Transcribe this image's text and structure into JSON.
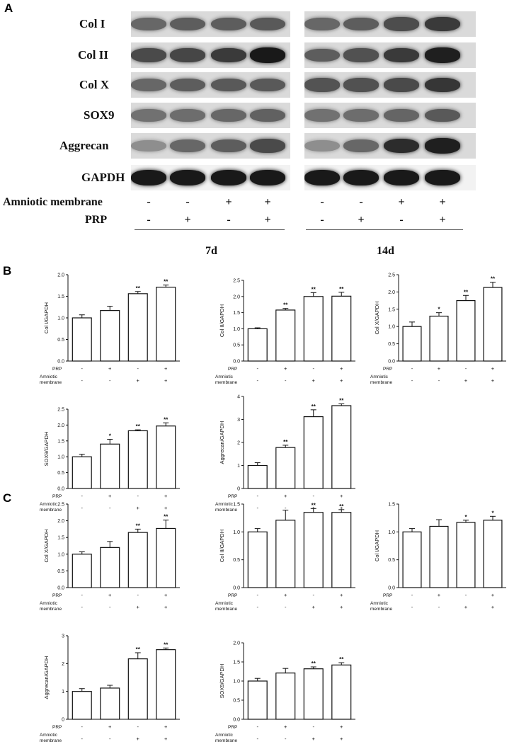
{
  "figure": {
    "panel_a": {
      "letter": "A",
      "rows": [
        {
          "name": "Col I",
          "intensity_7d": [
            0.55,
            0.6,
            0.6,
            0.62
          ],
          "intensity_14d": [
            0.55,
            0.6,
            0.68,
            0.78
          ]
        },
        {
          "name": "Col II",
          "intensity_7d": [
            0.7,
            0.72,
            0.78,
            0.95
          ],
          "intensity_14d": [
            0.6,
            0.66,
            0.78,
            0.92
          ]
        },
        {
          "name": "Col X",
          "intensity_7d": [
            0.55,
            0.6,
            0.62,
            0.62
          ],
          "intensity_14d": [
            0.65,
            0.66,
            0.7,
            0.8
          ]
        },
        {
          "name": "SOX9",
          "intensity_7d": [
            0.5,
            0.52,
            0.55,
            0.58
          ],
          "intensity_14d": [
            0.5,
            0.52,
            0.56,
            0.62
          ]
        },
        {
          "name": "Aggrecan",
          "intensity_7d": [
            0.35,
            0.55,
            0.6,
            0.7
          ],
          "intensity_14d": [
            0.35,
            0.55,
            0.85,
            0.92
          ]
        },
        {
          "name": "GAPDH",
          "intensity_7d": [
            0.95,
            0.95,
            0.95,
            0.95
          ],
          "intensity_14d": [
            0.95,
            0.95,
            0.95,
            0.95
          ]
        }
      ],
      "conditions": {
        "amniotic_label": "Amniotic membrane",
        "prp_label": "PRP",
        "amniotic_signs": [
          "-",
          "-",
          "+",
          "+"
        ],
        "prp_signs": [
          "-",
          "+",
          "-",
          "+"
        ]
      },
      "time_labels": [
        "7d",
        "14d"
      ]
    },
    "panel_b": {
      "letter": "B"
    },
    "panel_c": {
      "letter": "C"
    }
  },
  "chart_data": [
    {
      "id": "B1",
      "type": "bar",
      "ylabel": "Col I/GAPDH",
      "ylim": [
        0,
        2.0
      ],
      "yticks": [
        "0.0",
        "0.5",
        "1.0",
        "1.5",
        "2.0"
      ],
      "yticks_num": [
        0,
        0.5,
        1.0,
        1.5,
        2.0
      ],
      "values": [
        1.0,
        1.17,
        1.56,
        1.71
      ],
      "errors": [
        0.07,
        0.1,
        0.05,
        0.05
      ],
      "sig": [
        "",
        "",
        "**",
        "**"
      ],
      "prp_label": "PRP",
      "amniotic_label": [
        "Amniotic",
        "membrane"
      ],
      "prp_signs": [
        "-",
        "+",
        "-",
        "+"
      ],
      "amniotic_signs": [
        "-",
        "-",
        "+",
        "+"
      ]
    },
    {
      "id": "B2",
      "type": "bar",
      "ylabel": "Col II/GAPDH",
      "ylim": [
        0,
        2.5
      ],
      "yticks": [
        "0.0",
        "0.5",
        "1.0",
        "1.5",
        "2.0",
        "2.5"
      ],
      "yticks_num": [
        0,
        0.5,
        1.0,
        1.5,
        2.0,
        2.5
      ],
      "values": [
        1.0,
        1.58,
        2.0,
        2.01
      ],
      "errors": [
        0.03,
        0.05,
        0.12,
        0.12
      ],
      "sig": [
        "",
        "**",
        "**",
        "**"
      ],
      "prp_label": "PRP",
      "amniotic_label": [
        "Amniotic",
        "membrane"
      ],
      "prp_signs": [
        "-",
        "+",
        "-",
        "+"
      ],
      "amniotic_signs": [
        "-",
        "-",
        "+",
        "+"
      ]
    },
    {
      "id": "B3",
      "type": "bar",
      "ylabel": "Col X/GAPDH",
      "ylim": [
        0,
        2.5
      ],
      "yticks": [
        "0.0",
        "0.5",
        "1.0",
        "1.5",
        "2.0",
        "2.5"
      ],
      "yticks_num": [
        0,
        0.5,
        1.0,
        1.5,
        2.0,
        2.5
      ],
      "values": [
        1.0,
        1.3,
        1.75,
        2.13
      ],
      "errors": [
        0.13,
        0.1,
        0.15,
        0.15
      ],
      "sig": [
        "",
        "*",
        "**",
        "**"
      ],
      "prp_label": "PRP",
      "amniotic_label": [
        "Amniotic",
        "membrane"
      ],
      "prp_signs": [
        "-",
        "+",
        "-",
        "+"
      ],
      "amniotic_signs": [
        "-",
        "-",
        "+",
        "+"
      ]
    },
    {
      "id": "B4",
      "type": "bar",
      "ylabel": "SOX9/GAPDH",
      "ylim": [
        0,
        2.5
      ],
      "yticks": [
        "0.0",
        "0.5",
        "1.0",
        "1.5",
        "2.0",
        "2.5"
      ],
      "yticks_num": [
        0,
        0.5,
        1.0,
        1.5,
        2.0,
        2.5
      ],
      "values": [
        1.0,
        1.4,
        1.82,
        1.97
      ],
      "errors": [
        0.08,
        0.15,
        0.03,
        0.1
      ],
      "sig": [
        "",
        "*",
        "**",
        "**"
      ],
      "prp_label": "PRP",
      "amniotic_label": [
        "Amniotic",
        "membrane"
      ],
      "prp_signs": [
        "-",
        "+",
        "-",
        "+"
      ],
      "amniotic_signs": [
        "-",
        "-",
        "+",
        "+"
      ]
    },
    {
      "id": "B5",
      "type": "bar",
      "ylabel": "Aggrecan/GAPDH",
      "ylim": [
        0,
        4
      ],
      "yticks": [
        "0",
        "1",
        "2",
        "3",
        "4"
      ],
      "yticks_num": [
        0,
        1,
        2,
        3,
        4
      ],
      "values": [
        1.0,
        1.78,
        3.12,
        3.6
      ],
      "errors": [
        0.12,
        0.1,
        0.3,
        0.08
      ],
      "sig": [
        "",
        "**",
        "**",
        "**"
      ],
      "prp_label": "PRP",
      "amniotic_label": [
        "Amniotic",
        "membrane"
      ],
      "prp_signs": [
        "-",
        "+",
        "-",
        "+"
      ],
      "amniotic_signs": [
        "-",
        "-",
        "+",
        "+"
      ]
    },
    {
      "id": "C1",
      "type": "bar",
      "ylabel": "Col X/GAPDH",
      "ylim": [
        0,
        2.5
      ],
      "yticks": [
        "0.0",
        "0.5",
        "1.0",
        "1.5",
        "2.0",
        "2.5"
      ],
      "yticks_num": [
        0,
        0.5,
        1.0,
        1.5,
        2.0,
        2.5
      ],
      "values": [
        1.0,
        1.2,
        1.65,
        1.77
      ],
      "errors": [
        0.07,
        0.18,
        0.1,
        0.25
      ],
      "sig": [
        "",
        "",
        "**",
        "**"
      ],
      "prp_label": "PRP",
      "amniotic_label": [
        "Amniotic",
        "membrane"
      ],
      "prp_signs": [
        "-",
        "+",
        "-",
        "+"
      ],
      "amniotic_signs": [
        "-",
        "-",
        "+",
        "+"
      ]
    },
    {
      "id": "C2",
      "type": "bar",
      "ylabel": "Col II/GAPDH",
      "ylim": [
        0,
        1.5
      ],
      "yticks": [
        "0.0",
        "0.5",
        "1.0",
        "1.5"
      ],
      "yticks_num": [
        0,
        0.5,
        1.0,
        1.5
      ],
      "values": [
        1.0,
        1.21,
        1.35,
        1.35
      ],
      "errors": [
        0.06,
        0.18,
        0.07,
        0.05
      ],
      "sig": [
        "",
        "",
        "**",
        "**"
      ],
      "prp_label": "PRP",
      "amniotic_label": [
        "Amniotic",
        "membrane"
      ],
      "prp_signs": [
        "-",
        "+",
        "-",
        "+"
      ],
      "amniotic_signs": [
        "-",
        "-",
        "+",
        "+"
      ]
    },
    {
      "id": "C3",
      "type": "bar",
      "ylabel": "Col I/GAPDH",
      "ylim": [
        0,
        1.5
      ],
      "yticks": [
        "0.0",
        "0.5",
        "1.0",
        "1.5"
      ],
      "yticks_num": [
        0,
        0.5,
        1.0,
        1.5
      ],
      "values": [
        1.0,
        1.1,
        1.17,
        1.21
      ],
      "errors": [
        0.06,
        0.12,
        0.04,
        0.07
      ],
      "sig": [
        "",
        "",
        "*",
        "*"
      ],
      "prp_label": "PRP",
      "amniotic_label": [
        "Amniotic",
        "membrane"
      ],
      "prp_signs": [
        "-",
        "+",
        "-",
        "+"
      ],
      "amniotic_signs": [
        "-",
        "-",
        "+",
        "+"
      ]
    },
    {
      "id": "C4",
      "type": "bar",
      "ylabel": "Aggrecan/GAPDH",
      "ylim": [
        0,
        3
      ],
      "yticks": [
        "0",
        "1",
        "2",
        "3"
      ],
      "yticks_num": [
        0,
        1,
        2,
        3
      ],
      "values": [
        1.0,
        1.12,
        2.17,
        2.5
      ],
      "errors": [
        0.1,
        0.1,
        0.22,
        0.06
      ],
      "sig": [
        "",
        "",
        "**",
        "**"
      ],
      "prp_label": "PRP",
      "amniotic_label": [
        "Amniotic",
        "membrane"
      ],
      "prp_signs": [
        "-",
        "+",
        "-",
        "+"
      ],
      "amniotic_signs": [
        "-",
        "-",
        "+",
        "+"
      ]
    },
    {
      "id": "C5",
      "type": "bar",
      "ylabel": "SOX9/GAPDH",
      "ylim": [
        0,
        2.0
      ],
      "yticks": [
        "0.0",
        "0.5",
        "1.0",
        "1.5",
        "2.0"
      ],
      "yticks_num": [
        0,
        0.5,
        1.0,
        1.5,
        2.0
      ],
      "values": [
        1.0,
        1.21,
        1.32,
        1.42
      ],
      "errors": [
        0.07,
        0.12,
        0.05,
        0.06
      ],
      "sig": [
        "",
        "",
        "**",
        "**"
      ],
      "prp_label": "PRP",
      "amniotic_label": [
        "Amniotic",
        "membrane"
      ],
      "prp_signs": [
        "-",
        "+",
        "-",
        "+"
      ],
      "amniotic_signs": [
        "-",
        "-",
        "+",
        "+"
      ]
    }
  ]
}
